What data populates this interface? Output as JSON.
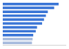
{
  "chart_data": {
    "type": "bar",
    "orientation": "horizontal",
    "categories": [
      null,
      null,
      null,
      null,
      null,
      null,
      null,
      null,
      null,
      null,
      null
    ],
    "values": [
      88,
      81,
      71,
      68,
      65,
      62,
      54,
      52,
      48,
      47,
      46
    ],
    "colors": [
      "#3a75d6",
      "#3a75d6",
      "#3a75d6",
      "#3a75d6",
      "#3a75d6",
      "#3a75d6",
      "#3a75d6",
      "#3a75d6",
      "#3a75d6",
      "#a7bbdd",
      "#a7bbdd"
    ],
    "xlim": [
      0,
      100
    ],
    "grid": false,
    "tick_labels": false
  }
}
